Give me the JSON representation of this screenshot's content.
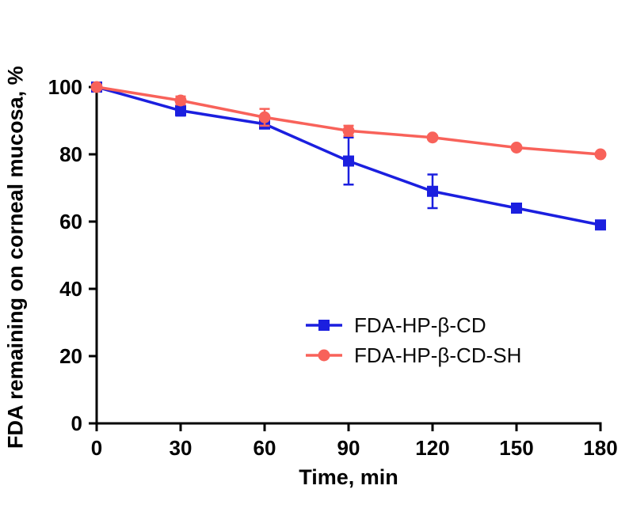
{
  "figure": {
    "background": "#ffffff",
    "axis_color": "#000000",
    "text_color": "#000000"
  },
  "chart_data": {
    "type": "line",
    "title": "",
    "xlabel": "Time, min",
    "ylabel": "FDA remaining on corneal mucosa, %",
    "x": [
      0,
      30,
      60,
      90,
      120,
      150,
      180
    ],
    "xlim": [
      0,
      180
    ],
    "ylim": [
      0,
      100
    ],
    "xticks": [
      0,
      30,
      60,
      90,
      120,
      150,
      180
    ],
    "yticks": [
      0,
      20,
      40,
      60,
      80,
      100
    ],
    "grid": false,
    "legend_position": "inside-lower-right",
    "series": [
      {
        "name": "FDA-HP-β-CD",
        "color": "#1b1fdf",
        "marker": "square",
        "values": [
          100,
          93,
          89,
          78,
          69,
          64,
          59
        ],
        "errors": [
          0,
          1.5,
          0,
          7,
          5,
          0,
          0
        ]
      },
      {
        "name": "FDA-HP-β-CD-SH",
        "color": "#f8625a",
        "marker": "circle",
        "values": [
          100,
          96,
          91,
          87,
          85,
          82,
          80
        ],
        "errors": [
          0,
          1.2,
          2.5,
          1.5,
          0,
          0,
          0
        ]
      }
    ]
  }
}
